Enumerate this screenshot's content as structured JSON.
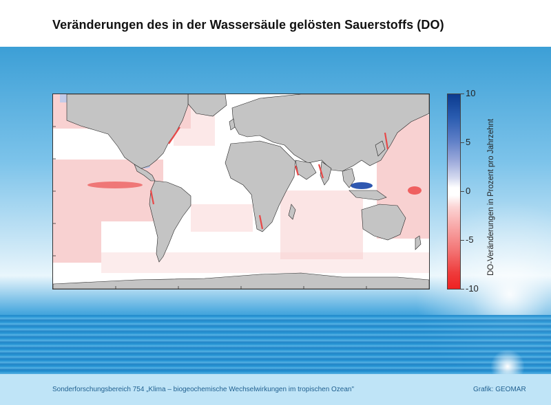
{
  "title": "Veränderungen des in der Wassersäule gelösten Sauerstoffs (DO)",
  "colorbar": {
    "label": "DO-Veränderungen in Prozent pro Jahrzehnt",
    "ticks": [
      "10",
      "5",
      "0",
      "-5",
      "-10"
    ],
    "range": [
      -10,
      10
    ],
    "colors": {
      "high": "#0b3a8f",
      "zero": "#ffffff",
      "low": "#ee2222"
    }
  },
  "map": {
    "projection": "equirectangular",
    "land_color": "#c4c4c4",
    "ocean_color": "#ffffff"
  },
  "footer": {
    "left": "Sonderforschungsbereich 754 „Klima – biogeochemische Wechselwirkungen im tropischen Ozean\"",
    "right": "Grafik: GEOMAR"
  }
}
